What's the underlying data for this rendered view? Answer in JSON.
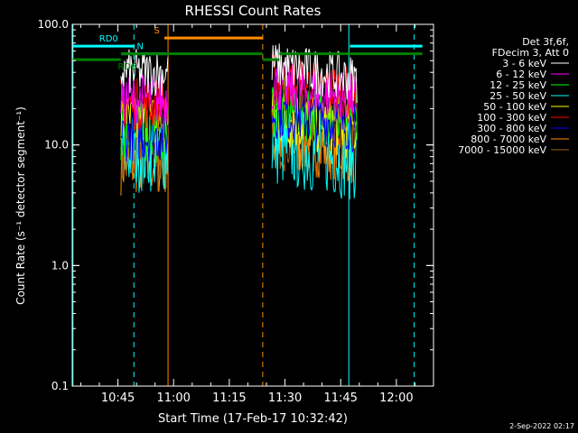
{
  "chart_data": {
    "type": "line",
    "title": "RHESSI Count Rates",
    "xlabel": "Start Time (17-Feb-17 10:32:42)",
    "ylabel": "Count Rate (s⁻¹ detector segment⁻¹)",
    "yscale": "log",
    "ylim": [
      0.1,
      100.0
    ],
    "yticks": [
      {
        "value": 0.1,
        "label": "0.1"
      },
      {
        "value": 1.0,
        "label": "1.0"
      },
      {
        "value": 10.0,
        "label": "10.0"
      },
      {
        "value": 100.0,
        "label": "100.0"
      }
    ],
    "x_unit": "minutes",
    "xlim": [
      632.7,
      730.0
    ],
    "xticks": [
      {
        "value": 645,
        "label": "10:45"
      },
      {
        "value": 660,
        "label": "11:00"
      },
      {
        "value": 675,
        "label": "11:15"
      },
      {
        "value": 690,
        "label": "11:30"
      },
      {
        "value": 705,
        "label": "11:45"
      },
      {
        "value": 720,
        "label": "12:00"
      }
    ],
    "legend": {
      "placement": "right",
      "header": [
        "Det 3f,6f,",
        "FDecim 3, Att 0"
      ]
    },
    "series": [
      {
        "name": "3 - 6 keV",
        "color": "#ffffff",
        "level1": 40,
        "level2": 37,
        "spread": 0.09
      },
      {
        "name": "6 - 12 keV",
        "color": "#ff00ff",
        "level1": 24,
        "level2": 25,
        "spread": 0.1
      },
      {
        "name": "12 - 25 keV",
        "color": "#00ff00",
        "level1": 13,
        "level2": 17,
        "spread": 0.12
      },
      {
        "name": "25 - 50 keV",
        "color": "#00ffff",
        "level1": 9,
        "level2": 8,
        "spread": 0.16
      },
      {
        "name": "50 - 100 keV",
        "color": "#ffff00",
        "level1": 15,
        "level2": 14,
        "spread": 0.12
      },
      {
        "name": "100 - 300 keV",
        "color": "#ff0000",
        "level1": 22,
        "level2": 28,
        "spread": 0.1
      },
      {
        "name": "300 - 800 keV",
        "color": "#0000ff",
        "level1": 12,
        "level2": 15,
        "spread": 0.1
      },
      {
        "name": "800 - 7000 keV",
        "color": "#ff8c00",
        "level1": 7,
        "level2": 9,
        "spread": 0.12
      },
      {
        "name": "7000 - 15000 keV",
        "color": "#a06010",
        "level1": 8,
        "level2": 10,
        "spread": 0.14
      }
    ],
    "segments": [
      [
        645.8,
        658.5
      ],
      [
        686.5,
        709.5
      ]
    ],
    "flag_bars": [
      {
        "label": "RD0",
        "color": "#00ffff",
        "y": 66,
        "x1": 632.7,
        "x2": 649.5,
        "label_x": 642.5
      },
      {
        "label": "RD0",
        "color": "#00ffff",
        "y": 66,
        "x1": 707.5,
        "x2": 727.0,
        "label_x": null
      },
      {
        "label": "N",
        "color": "#00ffff",
        "y": 57,
        "x1": 646.0,
        "x2": 658.0,
        "label_x": 651.0
      },
      {
        "label": "RD6",
        "color": "#008000",
        "y": 51,
        "x1": 632.7,
        "x2": 645.8,
        "label_x": 647.5
      },
      {
        "label": "RD6",
        "color": "#008000",
        "y": 57,
        "x1": 645.8,
        "x2": 684.0,
        "label_x": null
      },
      {
        "label": "RD6",
        "color": "#008000",
        "y": 51,
        "x1": 684.0,
        "x2": 688.5,
        "label_x": null
      },
      {
        "label": "RD6",
        "color": "#008000",
        "y": 57,
        "x1": 688.5,
        "x2": 727.0,
        "label_x": null
      },
      {
        "label": "S",
        "color": "#ff8c00",
        "y": 77,
        "x1": 657.5,
        "x2": 684.0,
        "label_x": 655.5
      }
    ],
    "vlines": [
      {
        "x": 632.9,
        "color": "#00ffff",
        "style": "solid"
      },
      {
        "x": 649.3,
        "color": "#00ffff",
        "style": "dashed"
      },
      {
        "x": 658.5,
        "color": "#ff8c00",
        "style": "solid"
      },
      {
        "x": 684.0,
        "color": "#ff8c00",
        "style": "dashed"
      },
      {
        "x": 707.2,
        "color": "#00ffff",
        "style": "solid"
      },
      {
        "x": 724.8,
        "color": "#00ffff",
        "style": "dashed"
      }
    ],
    "footer": "2-Sep-2022 02:17"
  }
}
